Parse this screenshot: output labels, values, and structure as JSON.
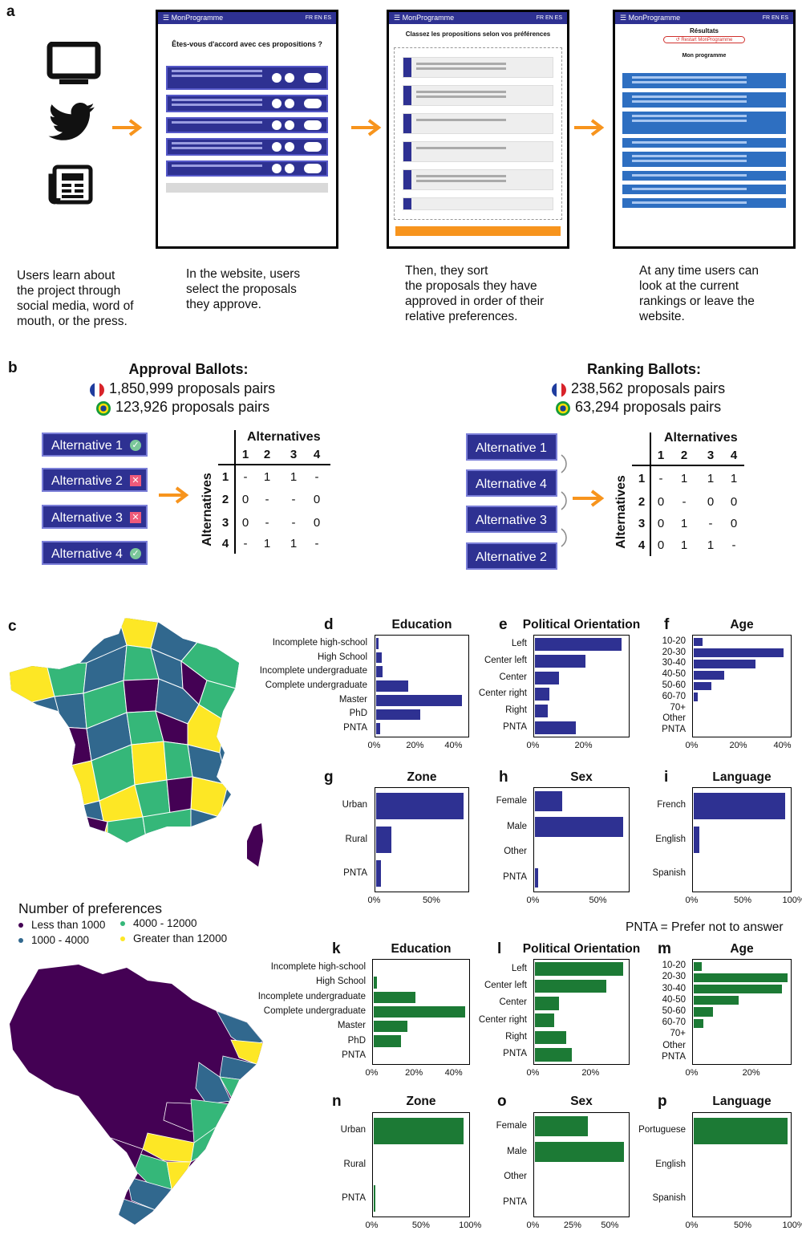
{
  "colors": {
    "france_bar": "#2e3192",
    "brazil_bar": "#1c7a35",
    "arrow": "#f7941d",
    "alt_button": "#2e3192",
    "viridis_low": "#440154",
    "viridis_mid1": "#31688e",
    "viridis_mid2": "#35b779",
    "viridis_high": "#fde725"
  },
  "panel_a": {
    "letter": "a",
    "icons": [
      "monitor-icon",
      "twitter-icon",
      "newspaper-icon"
    ],
    "screens": {
      "s1": {
        "app": "☰ MonProgramme",
        "langs": "FR  EN  ES",
        "question": "Êtes-vous d'accord avec ces propositions ?"
      },
      "s2": {
        "app": "☰ MonProgramme",
        "langs": "FR  EN  ES",
        "question": "Classez les propositions selon vos préférences"
      },
      "s3": {
        "app": "☰ MonProgramme",
        "langs": "FR  EN  ES",
        "title": "Résultats",
        "retry": "↺ Restart MonProgramme",
        "subtitle": "Mon programme"
      }
    },
    "captions": [
      "Users learn about\nthe project through\nsocial media, word of\nmouth, or the press.",
      "In the website, users\nselect the proposals\nthey approve.",
      "Then, they sort\nthe proposals they have\napproved in order of their\nrelative preferences.",
      "At any time users can\nlook at the current\nrankings or leave the\nwebsite."
    ]
  },
  "panel_b": {
    "letter": "b",
    "approval": {
      "title": "Approval Ballots:",
      "fr": "1,850,999 proposals pairs",
      "br": "123,926 proposals pairs",
      "alternatives": [
        "Alternative 1",
        "Alternative 2",
        "Alternative 3",
        "Alternative 4"
      ],
      "marks": [
        "✓",
        "✕",
        "✕",
        "✓"
      ],
      "matrix_title": "Alternatives",
      "row_label": "Alternatives",
      "cols": [
        "1",
        "2",
        "3",
        "4"
      ],
      "rows": [
        [
          "-",
          "1",
          "1",
          "-"
        ],
        [
          "0",
          "-",
          "-",
          "0"
        ],
        [
          "0",
          "-",
          "-",
          "0"
        ],
        [
          "-",
          "1",
          "1",
          "-"
        ]
      ]
    },
    "ranking": {
      "title": "Ranking Ballots:",
      "fr": "238,562 proposals pairs",
      "br": "63,294 proposals pairs",
      "alternatives": [
        "Alternative 1",
        "Alternative 4",
        "Alternative 3",
        "Alternative 2"
      ],
      "matrix_title": "Alternatives",
      "row_label": "Alternatives",
      "cols": [
        "1",
        "2",
        "3",
        "4"
      ],
      "rows": [
        [
          "-",
          "1",
          "1",
          "1"
        ],
        [
          "0",
          "-",
          "0",
          "0"
        ],
        [
          "0",
          "1",
          "-",
          "0"
        ],
        [
          "0",
          "1",
          "1",
          "-"
        ]
      ]
    }
  },
  "panel_c": {
    "letter": "c",
    "legend_title": "Number of preferences",
    "legend": [
      {
        "label": "Less than 1000",
        "color": "#440154"
      },
      {
        "label": "4000 - 12000",
        "color": "#35b779"
      },
      {
        "label": "1000 - 4000",
        "color": "#31688e"
      },
      {
        "label": "Greater than 12000",
        "color": "#fde725"
      }
    ]
  },
  "pnta_note": "PNTA = Prefer not to answer",
  "chart_data": [
    {
      "panel": "d",
      "type": "bar",
      "orientation": "horizontal",
      "title": "Education",
      "categories": [
        "Incomplete high-school",
        "High School",
        "Incomplete undergraduate",
        "Complete undergraduate",
        "Master",
        "PhD",
        "PNTA"
      ],
      "values": [
        1.5,
        3,
        3.5,
        17,
        45,
        23,
        2.5
      ],
      "xlim": [
        0,
        48
      ],
      "ticks": [
        "0%",
        "20%",
        "40%"
      ],
      "tick_values": [
        0,
        20,
        40
      ]
    },
    {
      "panel": "e",
      "type": "bar",
      "orientation": "horizontal",
      "title": "Political Orientation",
      "categories": [
        "Left",
        "Center left",
        "Center",
        "Center right",
        "Right",
        "PNTA"
      ],
      "values": [
        36,
        21,
        10,
        6,
        5.5,
        17
      ],
      "xlim": [
        0,
        39
      ],
      "ticks": [
        "0%",
        "20%"
      ],
      "tick_values": [
        0,
        20
      ]
    },
    {
      "panel": "f",
      "type": "bar",
      "orientation": "horizontal",
      "title": "Age",
      "categories": [
        "10-20",
        "20-30",
        "30-40",
        "40-50",
        "50-60",
        "60-70",
        "70+",
        "Other",
        "PNTA"
      ],
      "values": [
        4,
        41,
        28,
        14,
        8,
        2,
        0,
        0,
        0
      ],
      "xlim": [
        0,
        44
      ],
      "ticks": [
        "0%",
        "20%",
        "40%"
      ],
      "tick_values": [
        0,
        20,
        40
      ]
    },
    {
      "panel": "g",
      "type": "bar",
      "orientation": "horizontal",
      "title": "Zone",
      "categories": [
        "Urban",
        "Rural",
        "PNTA"
      ],
      "values": [
        80,
        14,
        5
      ],
      "xlim": [
        0,
        84
      ],
      "ticks": [
        "0%",
        "50%"
      ],
      "tick_values": [
        0,
        50
      ]
    },
    {
      "panel": "h",
      "type": "bar",
      "orientation": "horizontal",
      "title": "Sex",
      "categories": [
        "Female",
        "Male",
        "Other",
        "PNTA"
      ],
      "values": [
        22,
        71,
        0,
        3
      ],
      "xlim": [
        0,
        75
      ],
      "ticks": [
        "0%",
        "50%"
      ],
      "tick_values": [
        0,
        50
      ]
    },
    {
      "panel": "i",
      "type": "bar",
      "orientation": "horizontal",
      "title": "Language",
      "categories": [
        "French",
        "English",
        "Spanish"
      ],
      "values": [
        95,
        6,
        0
      ],
      "xlim": [
        0,
        100
      ],
      "ticks": [
        "0%",
        "50%",
        "100%"
      ],
      "tick_values": [
        0,
        50,
        100
      ]
    },
    {
      "panel": "k",
      "type": "bar",
      "orientation": "horizontal",
      "title": "Education",
      "categories": [
        "Incomplete high-school",
        "High School",
        "Incomplete undergraduate",
        "Complete undergraduate",
        "Master",
        "PhD",
        "PNTA"
      ],
      "values": [
        0,
        2,
        21,
        46,
        17,
        14,
        0
      ],
      "xlim": [
        0,
        48
      ],
      "ticks": [
        "0%",
        "20%",
        "40%"
      ],
      "tick_values": [
        0,
        20,
        40
      ]
    },
    {
      "panel": "l",
      "type": "bar",
      "orientation": "horizontal",
      "title": "Political Orientation",
      "categories": [
        "Left",
        "Center left",
        "Center",
        "Center right",
        "Right",
        "PNTA"
      ],
      "values": [
        32,
        26,
        9,
        7,
        11.5,
        13.5
      ],
      "xlim": [
        0,
        34
      ],
      "ticks": [
        "0%",
        "20%"
      ],
      "tick_values": [
        0,
        20
      ]
    },
    {
      "panel": "m",
      "type": "bar",
      "orientation": "horizontal",
      "title": "Age",
      "categories": [
        "10-20",
        "20-30",
        "30-40",
        "40-50",
        "50-60",
        "60-70",
        "70+",
        "Other",
        "PNTA"
      ],
      "values": [
        3,
        33,
        31,
        16,
        7,
        3.5,
        0,
        0,
        0
      ],
      "xlim": [
        0,
        34
      ],
      "ticks": [
        "0%",
        "20%"
      ],
      "tick_values": [
        0,
        20
      ]
    },
    {
      "panel": "n",
      "type": "bar",
      "orientation": "horizontal",
      "title": "Zone",
      "categories": [
        "Urban",
        "Rural",
        "PNTA"
      ],
      "values": [
        96,
        0,
        1
      ],
      "xlim": [
        0,
        102
      ],
      "ticks": [
        "0%",
        "50%",
        "100%"
      ],
      "tick_values": [
        0,
        50,
        100
      ]
    },
    {
      "panel": "o",
      "type": "bar",
      "orientation": "horizontal",
      "title": "Sex",
      "categories": [
        "Female",
        "Male",
        "Other",
        "PNTA"
      ],
      "values": [
        36,
        60,
        0,
        0
      ],
      "xlim": [
        0,
        63
      ],
      "ticks": [
        "0%",
        "25%",
        "50%"
      ],
      "tick_values": [
        0,
        25,
        50
      ]
    },
    {
      "panel": "p",
      "type": "bar",
      "orientation": "horizontal",
      "title": "Language",
      "categories": [
        "Portuguese",
        "English",
        "Spanish"
      ],
      "values": [
        97,
        0,
        0
      ],
      "xlim": [
        0,
        100
      ],
      "ticks": [
        "0%",
        "50%",
        "100%"
      ],
      "tick_values": [
        0,
        50,
        100
      ]
    }
  ]
}
